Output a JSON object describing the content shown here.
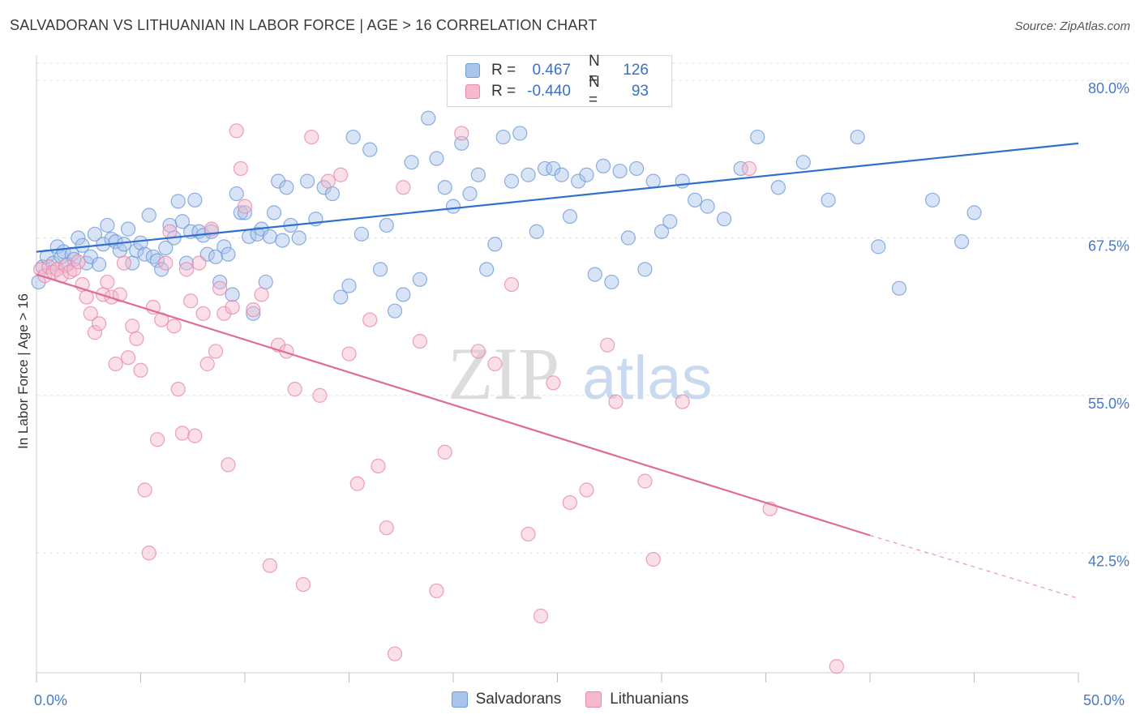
{
  "header": {
    "title": "SALVADORAN VS LITHUANIAN IN LABOR FORCE | AGE > 16 CORRELATION CHART",
    "source": "Source: ZipAtlas.com"
  },
  "watermark": {
    "part1": "ZIP",
    "part2": "atlas"
  },
  "legend_top": [
    {
      "r_label": "R =",
      "r_value": "0.467",
      "n_label": "N =",
      "n_value": "126",
      "color": "#a8c4ec",
      "border": "#6f9bdb"
    },
    {
      "r_label": "R =",
      "r_value": "-0.440",
      "n_label": "N =",
      "n_value": "93",
      "color": "#f5b9cb",
      "border": "#e98aa7"
    }
  ],
  "legend_bottom": [
    {
      "label": "Salvadorans",
      "color": "#a8c4ec",
      "border": "#6f9bdb"
    },
    {
      "label": "Lithuanians",
      "color": "#f5b9cb",
      "border": "#e98aa7"
    }
  ],
  "chart_data": {
    "type": "scatter",
    "title": "SALVADORAN VS LITHUANIAN IN LABOR FORCE | AGE > 16 CORRELATION CHART",
    "xlabel": "",
    "ylabel": "In Labor Force | Age > 16",
    "xlim": [
      0,
      50
    ],
    "ylim": [
      33,
      82
    ],
    "x_tick_labels": [
      "0.0%",
      "50.0%"
    ],
    "y_ticks": [
      42.5,
      55.0,
      67.5,
      80.0
    ],
    "y_tick_labels": [
      "42.5%",
      "55.0%",
      "67.5%",
      "80.0%"
    ],
    "grid": "horizontal dashed",
    "legend_placement": "bottom",
    "series": [
      {
        "name": "Salvadorans",
        "color": "#6f9bdb",
        "fill": "#a8c4ec",
        "trend": {
          "x0": 0,
          "y0": 66.4,
          "x1": 50,
          "y1": 75.0,
          "color": "#2f6fce"
        },
        "points": [
          [
            0.1,
            64.0
          ],
          [
            0.3,
            65.2
          ],
          [
            0.5,
            66.0
          ],
          [
            0.8,
            65.5
          ],
          [
            1.0,
            66.8
          ],
          [
            1.2,
            66.0
          ],
          [
            1.3,
            66.4
          ],
          [
            1.5,
            65.4
          ],
          [
            1.7,
            66.2
          ],
          [
            1.8,
            65.8
          ],
          [
            2.0,
            67.5
          ],
          [
            2.2,
            66.9
          ],
          [
            2.4,
            65.5
          ],
          [
            2.6,
            66.0
          ],
          [
            2.8,
            67.8
          ],
          [
            3.0,
            65.4
          ],
          [
            3.2,
            67.0
          ],
          [
            3.4,
            68.5
          ],
          [
            3.6,
            67.4
          ],
          [
            3.8,
            67.2
          ],
          [
            4.0,
            66.5
          ],
          [
            4.2,
            67.0
          ],
          [
            4.4,
            68.2
          ],
          [
            4.6,
            65.5
          ],
          [
            4.8,
            66.5
          ],
          [
            5.0,
            67.1
          ],
          [
            5.2,
            66.2
          ],
          [
            5.4,
            69.3
          ],
          [
            5.6,
            66.0
          ],
          [
            5.8,
            65.7
          ],
          [
            6.0,
            65.0
          ],
          [
            6.2,
            66.7
          ],
          [
            6.4,
            68.5
          ],
          [
            6.6,
            67.5
          ],
          [
            6.8,
            70.4
          ],
          [
            7.0,
            68.8
          ],
          [
            7.2,
            65.5
          ],
          [
            7.4,
            68.0
          ],
          [
            7.6,
            70.5
          ],
          [
            7.8,
            68.0
          ],
          [
            8.0,
            67.7
          ],
          [
            8.2,
            66.2
          ],
          [
            8.4,
            68.0
          ],
          [
            8.6,
            66.0
          ],
          [
            8.8,
            64.0
          ],
          [
            9.0,
            66.8
          ],
          [
            9.2,
            66.2
          ],
          [
            9.4,
            63.0
          ],
          [
            9.6,
            71.0
          ],
          [
            9.8,
            69.5
          ],
          [
            10.0,
            69.5
          ],
          [
            10.2,
            67.6
          ],
          [
            10.4,
            61.5
          ],
          [
            10.6,
            67.8
          ],
          [
            10.8,
            68.2
          ],
          [
            11.0,
            64.0
          ],
          [
            11.2,
            67.6
          ],
          [
            11.4,
            69.5
          ],
          [
            11.6,
            72.0
          ],
          [
            11.8,
            67.3
          ],
          [
            12.0,
            71.5
          ],
          [
            12.2,
            68.5
          ],
          [
            12.6,
            67.5
          ],
          [
            13.0,
            72.0
          ],
          [
            13.4,
            69.0
          ],
          [
            13.8,
            71.5
          ],
          [
            14.2,
            71.0
          ],
          [
            14.6,
            62.8
          ],
          [
            15.0,
            63.7
          ],
          [
            15.2,
            75.5
          ],
          [
            15.6,
            67.8
          ],
          [
            16.0,
            74.5
          ],
          [
            16.5,
            65.0
          ],
          [
            16.8,
            68.5
          ],
          [
            17.2,
            61.7
          ],
          [
            17.6,
            63.0
          ],
          [
            18.0,
            73.5
          ],
          [
            18.4,
            64.2
          ],
          [
            18.8,
            77.0
          ],
          [
            19.2,
            73.8
          ],
          [
            19.6,
            71.5
          ],
          [
            20.0,
            70.0
          ],
          [
            20.4,
            75.0
          ],
          [
            20.8,
            71.0
          ],
          [
            21.2,
            72.5
          ],
          [
            21.6,
            65.0
          ],
          [
            22.0,
            67.0
          ],
          [
            22.4,
            75.5
          ],
          [
            22.8,
            72.0
          ],
          [
            23.2,
            75.8
          ],
          [
            23.6,
            72.5
          ],
          [
            24.0,
            68.0
          ],
          [
            24.4,
            73.0
          ],
          [
            24.8,
            73.0
          ],
          [
            25.2,
            72.5
          ],
          [
            25.6,
            69.2
          ],
          [
            26.0,
            72.0
          ],
          [
            26.4,
            72.5
          ],
          [
            26.8,
            64.6
          ],
          [
            27.2,
            73.2
          ],
          [
            27.6,
            64.0
          ],
          [
            28.0,
            72.8
          ],
          [
            28.4,
            67.5
          ],
          [
            28.8,
            73.0
          ],
          [
            29.2,
            65.0
          ],
          [
            29.6,
            72.0
          ],
          [
            30.0,
            68.0
          ],
          [
            30.4,
            68.8
          ],
          [
            31.0,
            72.0
          ],
          [
            31.6,
            70.5
          ],
          [
            32.2,
            70.0
          ],
          [
            33.0,
            69.0
          ],
          [
            33.8,
            73.0
          ],
          [
            34.6,
            75.5
          ],
          [
            35.6,
            71.5
          ],
          [
            36.8,
            73.5
          ],
          [
            38.0,
            70.5
          ],
          [
            39.4,
            75.5
          ],
          [
            40.4,
            66.8
          ],
          [
            41.4,
            63.5
          ],
          [
            43.0,
            70.5
          ],
          [
            44.4,
            67.2
          ],
          [
            45.0,
            69.5
          ]
        ]
      },
      {
        "name": "Lithuanians",
        "color": "#e98aa7",
        "fill": "#f5b9cb",
        "trend": {
          "x0": 0,
          "y0": 64.6,
          "x1": 40,
          "y1": 43.9,
          "dash_to_x": 50,
          "dash_to_y": 38.9,
          "color": "#e06b93"
        },
        "points": [
          [
            0.2,
            65.0
          ],
          [
            0.4,
            64.5
          ],
          [
            0.6,
            65.2
          ],
          [
            0.8,
            64.8
          ],
          [
            1.0,
            65.0
          ],
          [
            1.2,
            64.5
          ],
          [
            1.4,
            65.3
          ],
          [
            1.6,
            64.8
          ],
          [
            1.8,
            65.0
          ],
          [
            2.0,
            65.6
          ],
          [
            2.2,
            63.8
          ],
          [
            2.4,
            62.8
          ],
          [
            2.6,
            61.5
          ],
          [
            2.8,
            60.0
          ],
          [
            3.0,
            60.7
          ],
          [
            3.2,
            63.0
          ],
          [
            3.4,
            64.0
          ],
          [
            3.6,
            62.8
          ],
          [
            3.8,
            57.5
          ],
          [
            4.0,
            63.0
          ],
          [
            4.2,
            65.5
          ],
          [
            4.4,
            58.0
          ],
          [
            4.6,
            60.5
          ],
          [
            4.8,
            59.5
          ],
          [
            5.0,
            57.0
          ],
          [
            5.2,
            47.5
          ],
          [
            5.4,
            42.5
          ],
          [
            5.6,
            62.0
          ],
          [
            5.8,
            51.5
          ],
          [
            6.0,
            61.0
          ],
          [
            6.2,
            65.5
          ],
          [
            6.4,
            68.0
          ],
          [
            6.6,
            60.5
          ],
          [
            6.8,
            55.5
          ],
          [
            7.0,
            52.0
          ],
          [
            7.2,
            65.0
          ],
          [
            7.4,
            62.5
          ],
          [
            7.6,
            51.8
          ],
          [
            7.8,
            65.5
          ],
          [
            8.0,
            61.5
          ],
          [
            8.2,
            57.5
          ],
          [
            8.4,
            68.2
          ],
          [
            8.6,
            58.5
          ],
          [
            8.8,
            63.5
          ],
          [
            9.0,
            61.5
          ],
          [
            9.2,
            49.5
          ],
          [
            9.4,
            62.0
          ],
          [
            9.6,
            76.0
          ],
          [
            9.8,
            73.0
          ],
          [
            10.0,
            70.0
          ],
          [
            10.4,
            61.8
          ],
          [
            10.8,
            63.0
          ],
          [
            11.2,
            41.5
          ],
          [
            11.6,
            59.0
          ],
          [
            12.0,
            58.5
          ],
          [
            12.4,
            55.5
          ],
          [
            12.8,
            40.0
          ],
          [
            13.2,
            75.5
          ],
          [
            13.6,
            55.0
          ],
          [
            14.0,
            72.0
          ],
          [
            14.6,
            72.5
          ],
          [
            15.0,
            58.3
          ],
          [
            15.4,
            48.0
          ],
          [
            16.0,
            61.0
          ],
          [
            16.4,
            49.4
          ],
          [
            16.8,
            44.5
          ],
          [
            17.2,
            34.5
          ],
          [
            17.6,
            71.5
          ],
          [
            18.4,
            59.3
          ],
          [
            19.2,
            39.5
          ],
          [
            19.6,
            50.5
          ],
          [
            20.4,
            75.8
          ],
          [
            21.2,
            58.5
          ],
          [
            22.0,
            57.5
          ],
          [
            22.8,
            63.8
          ],
          [
            23.6,
            44.0
          ],
          [
            24.2,
            37.5
          ],
          [
            24.8,
            56.0
          ],
          [
            25.6,
            46.5
          ],
          [
            26.4,
            47.5
          ],
          [
            27.4,
            59.0
          ],
          [
            27.8,
            54.5
          ],
          [
            29.2,
            48.2
          ],
          [
            29.6,
            42.0
          ],
          [
            31.0,
            54.5
          ],
          [
            34.2,
            73.0
          ],
          [
            35.2,
            46.0
          ],
          [
            38.4,
            33.5
          ]
        ]
      }
    ]
  }
}
